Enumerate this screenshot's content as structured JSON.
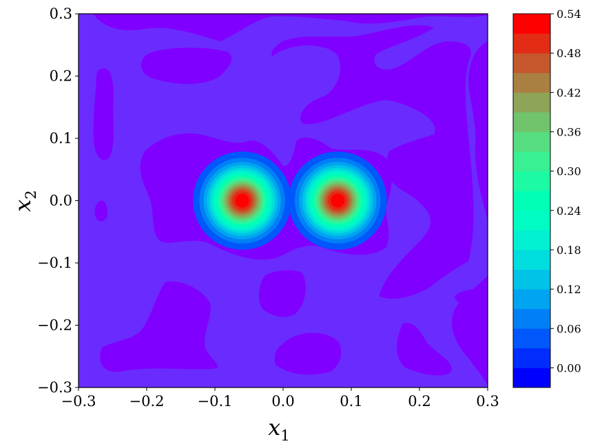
{
  "chart_data": {
    "type": "contour",
    "xlabel": "x1",
    "ylabel": "x2",
    "xlabel_main": "x",
    "xlabel_sub": "1",
    "ylabel_main": "x",
    "ylabel_sub": "2",
    "xlim": [
      -0.3,
      0.3
    ],
    "ylim": [
      -0.3,
      0.3
    ],
    "xticks": [
      "−0.3",
      "−0.2",
      "−0.1",
      "0.0",
      "0.1",
      "0.2",
      "0.3"
    ],
    "xtick_values": [
      -0.3,
      -0.2,
      -0.1,
      0.0,
      0.1,
      0.2,
      0.3
    ],
    "yticks": [
      "−0.3",
      "−0.2",
      "−0.1",
      "0.0",
      "0.1",
      "0.2",
      "0.3"
    ],
    "ytick_values": [
      -0.3,
      -0.2,
      -0.1,
      0.0,
      0.1,
      0.2,
      0.3
    ],
    "peaks": [
      {
        "x": -0.06,
        "y": 0.0,
        "value": 0.54
      },
      {
        "x": 0.08,
        "y": 0.0,
        "value": 0.54
      }
    ],
    "colorbar": {
      "min": -0.03,
      "max": 0.54,
      "step": 0.03,
      "colormap": "rainbow",
      "ticks": [
        "0.00",
        "0.06",
        "0.12",
        "0.18",
        "0.24",
        "0.30",
        "0.36",
        "0.42",
        "0.48",
        "0.54"
      ],
      "tick_values": [
        0.0,
        0.06,
        0.12,
        0.18,
        0.24,
        0.3,
        0.36,
        0.42,
        0.48,
        0.54
      ]
    },
    "colors": {
      "level_neg": "#8000ff",
      "level_zero": "#6a2cfe",
      "peak": "#ff0000"
    }
  }
}
